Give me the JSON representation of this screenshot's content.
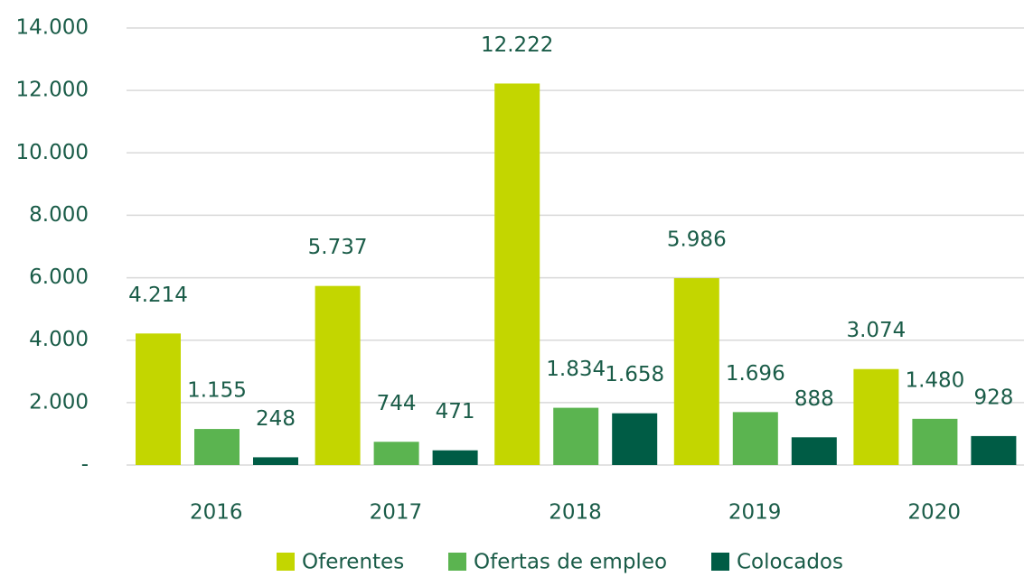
{
  "chart_data": {
    "type": "bar",
    "categories": [
      "2016",
      "2017",
      "2018",
      "2019",
      "2020"
    ],
    "series": [
      {
        "name": "Oferentes",
        "color": "#c3d600",
        "values": [
          4214,
          5737,
          12222,
          5986,
          3074
        ],
        "value_labels": [
          "4.214",
          "5.737",
          "12.222",
          "5.986",
          "3.074"
        ]
      },
      {
        "name": "Ofertas de empleo",
        "color": "#5bb450",
        "values": [
          1155,
          744,
          1834,
          1696,
          1480
        ],
        "value_labels": [
          "1.155",
          "744",
          "1.834",
          "1.696",
          "1.480"
        ]
      },
      {
        "name": "Colocados",
        "color": "#005c45",
        "values": [
          248,
          471,
          1658,
          888,
          928
        ],
        "value_labels": [
          "248",
          "471",
          "1.658",
          "888",
          "928"
        ]
      }
    ],
    "ylim": [
      0,
      14000
    ],
    "yticks": [
      {
        "value": 0,
        "label": "-"
      },
      {
        "value": 2000,
        "label": "2.000"
      },
      {
        "value": 4000,
        "label": "4.000"
      },
      {
        "value": 6000,
        "label": "6.000"
      },
      {
        "value": 8000,
        "label": "8.000"
      },
      {
        "value": 10000,
        "label": "10.000"
      },
      {
        "value": 12000,
        "label": "12.000"
      },
      {
        "value": 14000,
        "label": "14.000"
      }
    ],
    "grid": true,
    "legend": "bottom"
  }
}
